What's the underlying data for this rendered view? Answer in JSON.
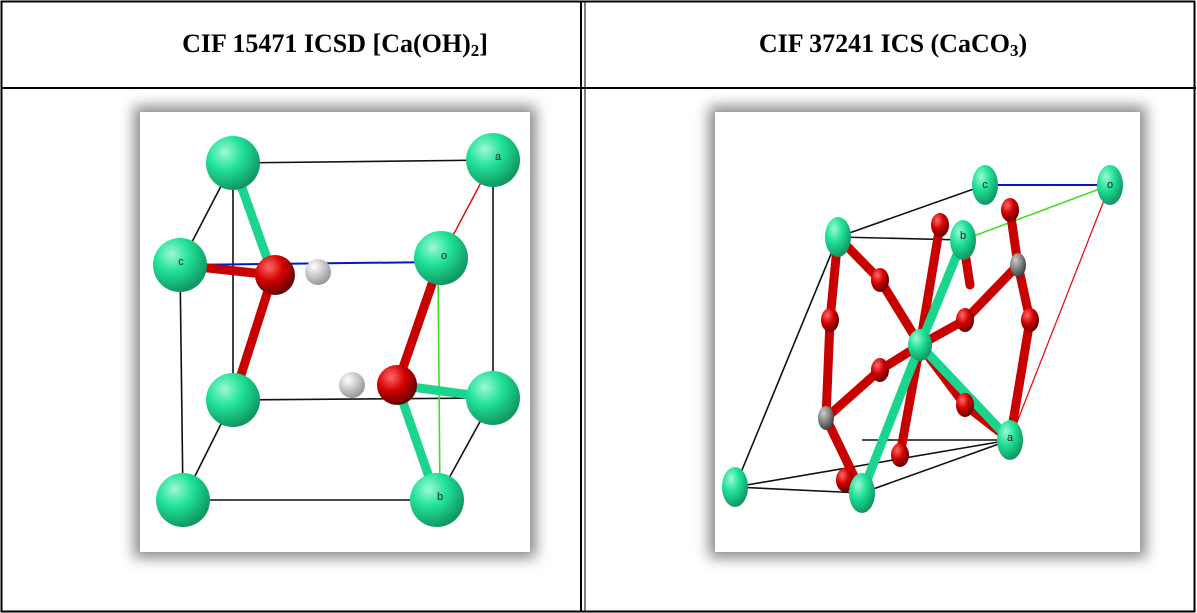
{
  "table": {
    "header": [
      {
        "parts": [
          "CIF 15471 ICSD [Ca(OH)",
          "2",
          "]"
        ]
      },
      {
        "parts": [
          "CIF 37241 ICS (CaCO",
          "3",
          ")"
        ]
      }
    ]
  },
  "images": [
    {
      "labels": [
        "a",
        "c",
        "o",
        "b"
      ]
    },
    {
      "labels": [
        "c",
        "o",
        "b",
        "a"
      ]
    }
  ]
}
